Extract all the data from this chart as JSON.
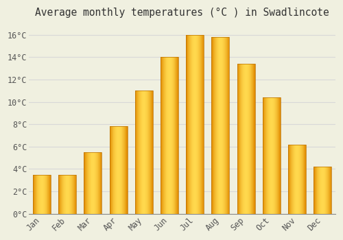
{
  "title": "Average monthly temperatures (°C ) in Swadlincote",
  "months": [
    "Jan",
    "Feb",
    "Mar",
    "Apr",
    "May",
    "Jun",
    "Jul",
    "Aug",
    "Sep",
    "Oct",
    "Nov",
    "Dec"
  ],
  "values": [
    3.5,
    3.5,
    5.5,
    7.8,
    11.0,
    14.0,
    16.0,
    15.8,
    13.4,
    10.4,
    6.2,
    4.2
  ],
  "bar_color_main": "#FFB300",
  "bar_color_highlight": "#FFD84D",
  "bar_color_edge": "#E08000",
  "background_color": "#F0F0E0",
  "grid_color": "#D8D8D8",
  "text_color": "#555555",
  "ylim": [
    0,
    17
  ],
  "yticks": [
    0,
    2,
    4,
    6,
    8,
    10,
    12,
    14,
    16
  ],
  "ytick_labels": [
    "0°C",
    "2°C",
    "4°C",
    "6°C",
    "8°C",
    "10°C",
    "12°C",
    "14°C",
    "16°C"
  ],
  "title_fontsize": 10.5,
  "tick_fontsize": 8.5,
  "font_family": "monospace"
}
